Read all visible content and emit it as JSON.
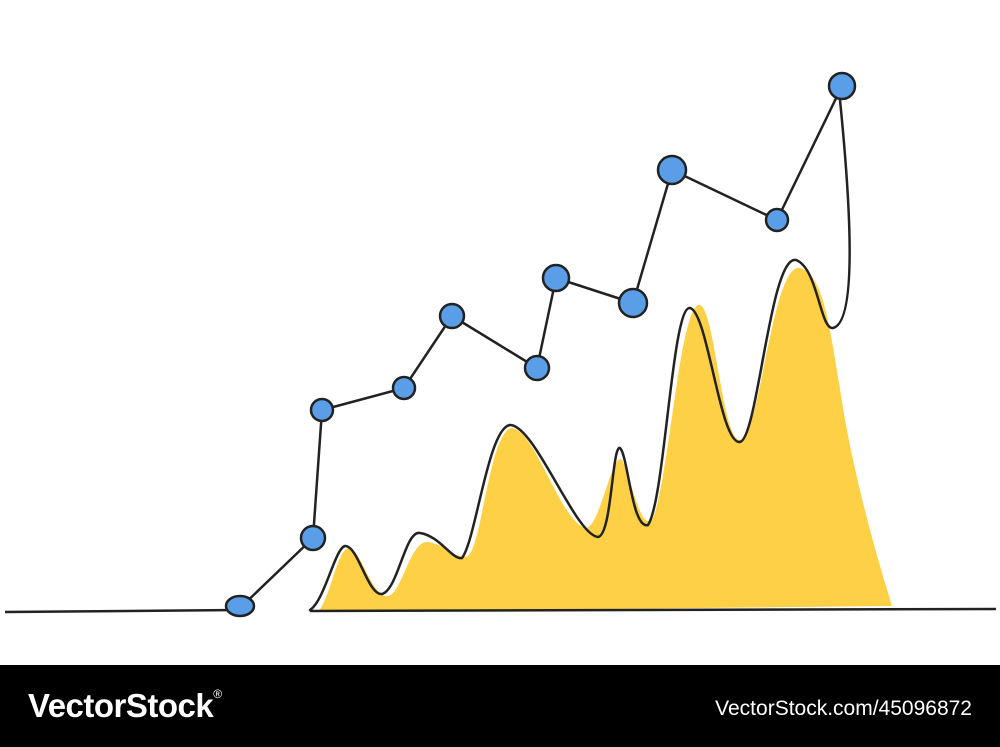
{
  "footer": {
    "brand": "VectorStock",
    "registered": "®",
    "url": "VectorStock.com/45096872"
  }
}
